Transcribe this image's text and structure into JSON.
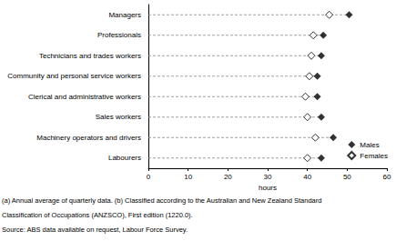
{
  "chart_data": {
    "type": "dot",
    "orientation": "horizontal",
    "categories": [
      "Managers",
      "Professionals",
      "Technicians and trades workers",
      "Community and personal service workers",
      "Clerical and administrative workers",
      "Sales workers",
      "Machinery operators and drivers",
      "Labourers"
    ],
    "series": [
      {
        "name": "Males",
        "color": "#000000",
        "marker": "diamond",
        "values": [
          50.5,
          44,
          43.5,
          42.5,
          42.5,
          43.5,
          46.5,
          43.5
        ]
      },
      {
        "name": "Females",
        "color": "#000000",
        "marker": "diamond-open",
        "values": [
          45.5,
          41.5,
          41,
          40.5,
          39.5,
          40,
          42,
          40
        ]
      }
    ],
    "x_label": "hours",
    "xlim": [
      0,
      60
    ],
    "xticks": [
      0,
      10,
      20,
      30,
      40,
      50,
      60
    ],
    "grid": false,
    "legend": "lower right",
    "annotations": [
      "(a) Annual average of quarterly data. (b) Classified according to the Australian and New Zealand Standard",
      "Classification of Occupations (ANZSCO), First edition (1220.0).",
      "Source: ABS data available on request, Labour Force Survey."
    ]
  }
}
